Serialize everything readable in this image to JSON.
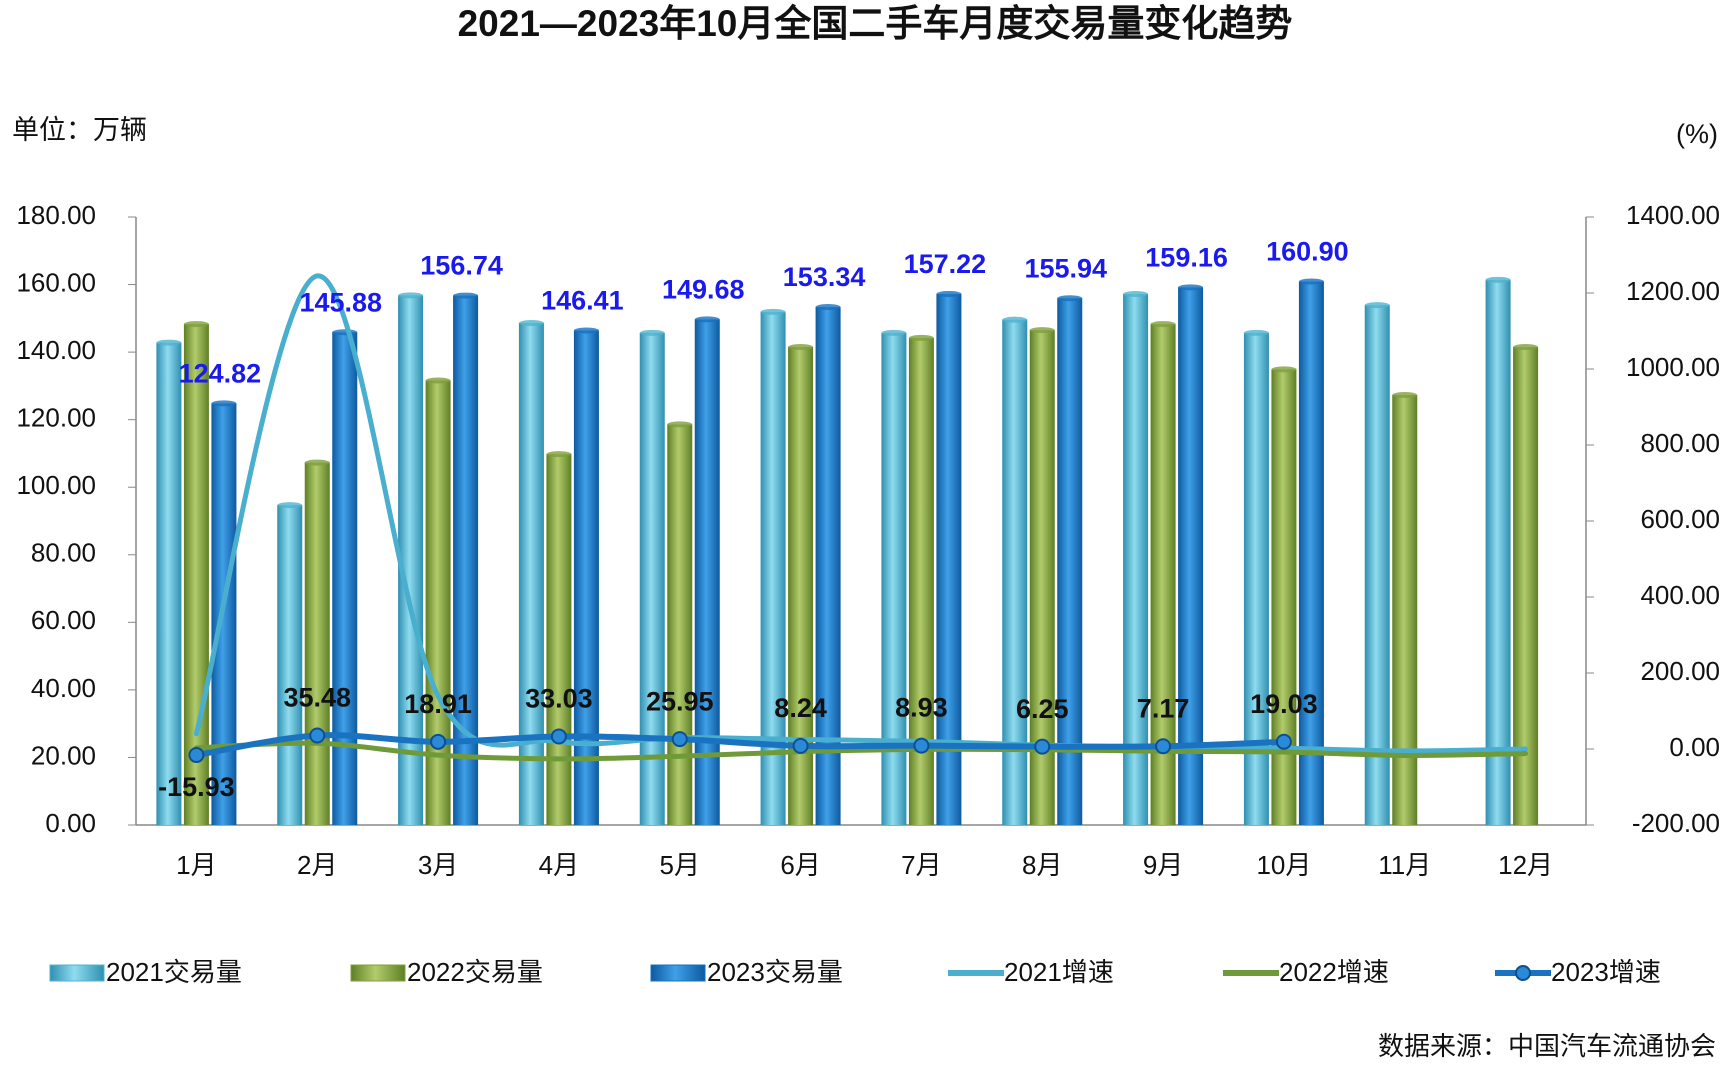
{
  "chart_data": {
    "type": "bar",
    "title": "2021—2023年10月全国二手车月度交易量变化趋势",
    "y_axis_label": "单位：万辆",
    "y2_axis_label": "(%)",
    "source": "数据来源：中国汽车流通协会",
    "categories": [
      "1月",
      "2月",
      "3月",
      "4月",
      "5月",
      "6月",
      "7月",
      "8月",
      "9月",
      "10月",
      "11月",
      "12月"
    ],
    "ylim": [
      0,
      180
    ],
    "yticks": [
      {
        "value": 0,
        "label": "0.00"
      },
      {
        "value": 20,
        "label": "20.00"
      },
      {
        "value": 40,
        "label": "40.00"
      },
      {
        "value": 60,
        "label": "60.00"
      },
      {
        "value": 80,
        "label": "80.00"
      },
      {
        "value": 100,
        "label": "100.00"
      },
      {
        "value": 120,
        "label": "120.00"
      },
      {
        "value": 140,
        "label": "140.00"
      },
      {
        "value": 160,
        "label": "160.00"
      },
      {
        "value": 180,
        "label": "180.00"
      }
    ],
    "y2lim": [
      -200,
      1400
    ],
    "y2ticks": [
      {
        "value": -200,
        "label": "-200.00"
      },
      {
        "value": 0,
        "label": "0.00"
      },
      {
        "value": 200,
        "label": "200.00"
      },
      {
        "value": 400,
        "label": "400.00"
      },
      {
        "value": 600,
        "label": "600.00"
      },
      {
        "value": 800,
        "label": "800.00"
      },
      {
        "value": 1000,
        "label": "1000.00"
      },
      {
        "value": 1200,
        "label": "1200.00"
      },
      {
        "value": 1400,
        "label": "1400.00"
      }
    ],
    "series": [
      {
        "name": "2021交易量",
        "kind": "bar",
        "color": "#4fb3cf",
        "values": [
          142.8,
          94.7,
          156.8,
          148.6,
          145.7,
          151.9,
          145.7,
          149.6,
          157.2,
          145.7,
          153.9,
          161.4
        ]
      },
      {
        "name": "2022交易量",
        "kind": "bar",
        "color": "#7f9f3c",
        "values": [
          148.3,
          107.3,
          131.6,
          109.8,
          118.6,
          141.5,
          144.2,
          146.5,
          148.3,
          134.9,
          127.3,
          141.5
        ]
      },
      {
        "name": "2023交易量",
        "kind": "bar",
        "color": "#1670c0",
        "values": [
          124.82,
          145.88,
          156.74,
          146.41,
          149.68,
          153.34,
          157.22,
          155.94,
          159.16,
          160.9,
          null,
          null
        ],
        "value_labels": [
          "124.82",
          "145.88",
          "156.74",
          "146.41",
          "149.68",
          "153.34",
          "157.22",
          "155.94",
          "159.16",
          "160.90",
          null,
          null
        ]
      },
      {
        "name": "2021增速",
        "kind": "line",
        "axis": "y2",
        "color": "#4aaecf",
        "values": [
          40,
          1245,
          140,
          20,
          30,
          25,
          20,
          10,
          5,
          2,
          -5,
          0
        ]
      },
      {
        "name": "2022增速",
        "kind": "line",
        "axis": "y2",
        "color": "#6f9a3a",
        "values": [
          3,
          15,
          -16,
          -26,
          -19,
          -7,
          -1,
          -2,
          -6,
          -8,
          -17,
          -12
        ]
      },
      {
        "name": "2023增速",
        "kind": "line",
        "axis": "y2",
        "color": "#1a73c0",
        "marker": true,
        "values": [
          -15.93,
          35.48,
          18.91,
          33.03,
          25.95,
          8.24,
          8.93,
          6.25,
          7.17,
          19.03,
          null,
          null
        ],
        "value_labels": [
          "-15.93",
          "35.48",
          "18.91",
          "33.03",
          "25.95",
          "8.24",
          "8.93",
          "6.25",
          "7.17",
          "19.03",
          null,
          null
        ]
      }
    ]
  }
}
